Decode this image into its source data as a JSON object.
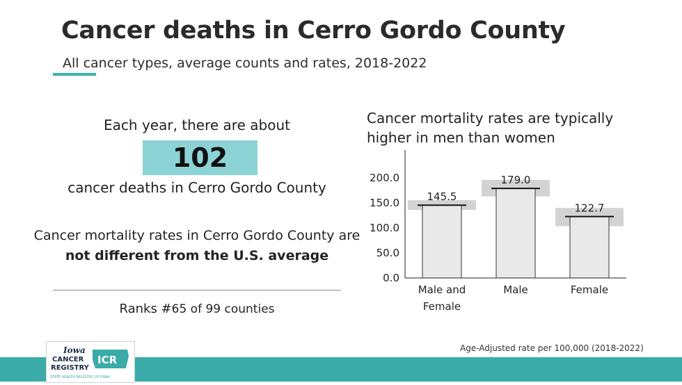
{
  "header": {
    "title": "Cancer deaths in Cerro Gordo County",
    "subtitle": "All cancer types, average counts and rates, 2018-2022"
  },
  "summary": {
    "lead": "Each year, there are about",
    "count": "102",
    "after": "cancer deaths in Cerro Gordo County",
    "comparison_prefix": "Cancer mortality rates in Cerro Gordo County are ",
    "comparison_bold": "not different from the U.S. average",
    "rank_prefix": "Ranks #",
    "rank_number": "65",
    "rank_suffix": " of 99 counties"
  },
  "chart_heading": "Cancer mortality rates are typically higher in men than women",
  "chart_data": {
    "type": "bar",
    "categories": [
      "Male and Female",
      "Male",
      "Female"
    ],
    "category_lines": [
      [
        "Male and",
        "Female"
      ],
      [
        "Male"
      ],
      [
        "Female"
      ]
    ],
    "values": [
      145.5,
      179.0,
      122.7
    ],
    "data_labels": [
      "145.5",
      "179.0",
      "122.7"
    ],
    "confidence_interval": [
      [
        136.0,
        155.5
      ],
      [
        163.0,
        196.0
      ],
      [
        103.5,
        140.0
      ]
    ],
    "yticks": [
      0.0,
      50.0,
      100.0,
      150.0,
      200.0
    ],
    "ytick_labels": [
      "0.0",
      "50.0",
      "100.0",
      "150.0",
      "200.0"
    ],
    "ylim": [
      0,
      200
    ],
    "title": "",
    "xlabel": "",
    "ylabel": "",
    "grid": false,
    "colors": {
      "bar": "#e9e9e9",
      "bar_edge": "#333333",
      "interval": "#d3d3d3",
      "marker": "#111111"
    }
  },
  "footnote": "Age-Adjusted rate per 100,000 (2018-2022)",
  "logo": {
    "name_line1": "Iowa",
    "name_line2": "CANCER",
    "name_line3": "REGISTRY",
    "abbr": "ICR",
    "tagline": "STATE HEALTH REGISTRY OF IOWA"
  },
  "colors": {
    "accent": "#3bb3b0",
    "count_box": "#8cd3d6",
    "footer_band": "#3aaba8"
  }
}
